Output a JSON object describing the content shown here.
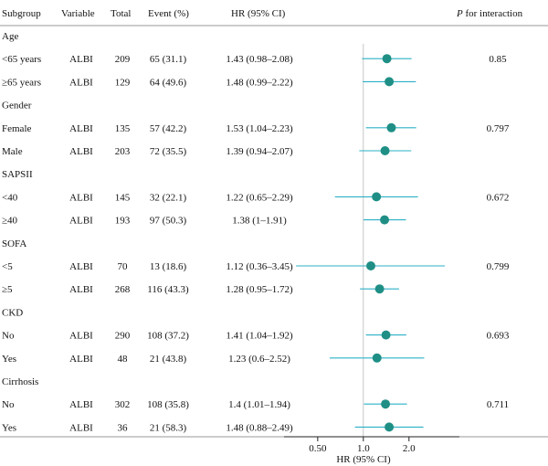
{
  "headers": {
    "subgroup": "Subgroup",
    "variable": "Variable",
    "total": "Total",
    "event": "Event (%)",
    "hr": "HR (95% CI)",
    "p_italic": "P",
    "p_rest": " for interaction"
  },
  "colors": {
    "ci_line": "#2bb0c6",
    "point": "#1f8f86"
  },
  "chart_data": {
    "type": "forest",
    "xscale": "log",
    "xlim": [
      0.3,
      4.3
    ],
    "reference_line": 1.0,
    "ticks": [
      {
        "value": 0.5,
        "label": "0.50"
      },
      {
        "value": 1.0,
        "label": "1.0"
      },
      {
        "value": 2.0,
        "label": "2.0"
      }
    ],
    "xlabel": "HR (95% CI)",
    "groups": [
      {
        "name": "Age",
        "p_interaction": "0.85",
        "rows": [
          {
            "subgroup": "<65 years",
            "variable": "ALBI",
            "total": "209",
            "event": "65 (31.1)",
            "hr_text": "1.43 (0.98–2.08)",
            "hr": 1.43,
            "lower": 0.98,
            "upper": 2.08
          },
          {
            "subgroup": "≥65 years",
            "variable": "ALBI",
            "total": "129",
            "event": "64 (49.6)",
            "hr_text": "1.48 (0.99–2.22)",
            "hr": 1.48,
            "lower": 0.99,
            "upper": 2.22
          }
        ]
      },
      {
        "name": "Gender",
        "p_interaction": "0.797",
        "rows": [
          {
            "subgroup": "Female",
            "variable": "ALBI",
            "total": "135",
            "event": "57 (42.2)",
            "hr_text": "1.53 (1.04–2.23)",
            "hr": 1.53,
            "lower": 1.04,
            "upper": 2.23
          },
          {
            "subgroup": "Male",
            "variable": "ALBI",
            "total": "203",
            "event": "72 (35.5)",
            "hr_text": "1.39 (0.94–2.07)",
            "hr": 1.39,
            "lower": 0.94,
            "upper": 2.07
          }
        ]
      },
      {
        "name": "SAPSII",
        "p_interaction": "0.672",
        "rows": [
          {
            "subgroup": "<40",
            "variable": "ALBI",
            "total": "145",
            "event": "32 (22.1)",
            "hr_text": "1.22 (0.65–2.29)",
            "hr": 1.22,
            "lower": 0.65,
            "upper": 2.29
          },
          {
            "subgroup": "≥40",
            "variable": "ALBI",
            "total": "193",
            "event": "97 (50.3)",
            "hr_text": "1.38 (1–1.91)",
            "hr": 1.38,
            "lower": 1.0,
            "upper": 1.91
          }
        ]
      },
      {
        "name": "SOFA",
        "p_interaction": "0.799",
        "rows": [
          {
            "subgroup": "<5",
            "variable": "ALBI",
            "total": "70",
            "event": "13 (18.6)",
            "hr_text": "1.12 (0.36–3.45)",
            "hr": 1.12,
            "lower": 0.36,
            "upper": 3.45
          },
          {
            "subgroup": "≥5",
            "variable": "ALBI",
            "total": "268",
            "event": "116 (43.3)",
            "hr_text": "1.28 (0.95–1.72)",
            "hr": 1.28,
            "lower": 0.95,
            "upper": 1.72
          }
        ]
      },
      {
        "name": "CKD",
        "p_interaction": "0.693",
        "rows": [
          {
            "subgroup": "No",
            "variable": "ALBI",
            "total": "290",
            "event": "108 (37.2)",
            "hr_text": "1.41 (1.04–1.92)",
            "hr": 1.41,
            "lower": 1.04,
            "upper": 1.92
          },
          {
            "subgroup": "Yes",
            "variable": "ALBI",
            "total": "48",
            "event": "21 (43.8)",
            "hr_text": "1.23 (0.6–2.52)",
            "hr": 1.23,
            "lower": 0.6,
            "upper": 2.52
          }
        ]
      },
      {
        "name": "Cirrhosis",
        "p_interaction": "0.711",
        "rows": [
          {
            "subgroup": "No",
            "variable": "ALBI",
            "total": "302",
            "event": "108 (35.8)",
            "hr_text": "1.4 (1.01–1.94)",
            "hr": 1.4,
            "lower": 1.01,
            "upper": 1.94
          },
          {
            "subgroup": "Yes",
            "variable": "ALBI",
            "total": "36",
            "event": "21 (58.3)",
            "hr_text": "1.48 (0.88–2.49)",
            "hr": 1.48,
            "lower": 0.88,
            "upper": 2.49
          }
        ]
      }
    ]
  }
}
